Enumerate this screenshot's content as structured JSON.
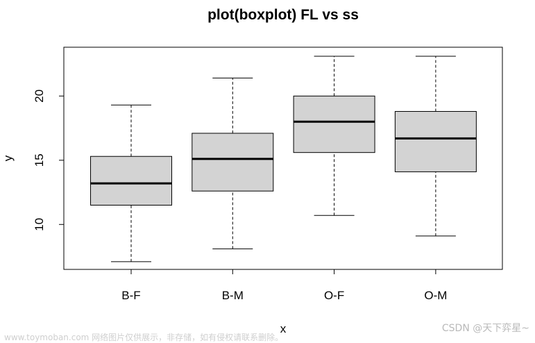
{
  "chart_data": {
    "type": "boxplot",
    "title": "plot(boxplot) FL vs ss",
    "xlabel": "x",
    "ylabel": "y",
    "categories": [
      "B-F",
      "B-M",
      "O-F",
      "O-M"
    ],
    "yticks": [
      10,
      15,
      20
    ],
    "ylim": [
      6.5,
      23.8
    ],
    "box_fill": "#d3d3d3",
    "boxes": [
      {
        "label": "B-F",
        "whisker_low": 7.1,
        "q1": 11.5,
        "median": 13.2,
        "q3": 15.3,
        "whisker_high": 19.3
      },
      {
        "label": "B-M",
        "whisker_low": 8.1,
        "q1": 12.6,
        "median": 15.1,
        "q3": 17.1,
        "whisker_high": 21.4
      },
      {
        "label": "O-F",
        "whisker_low": 10.7,
        "q1": 15.6,
        "median": 18.0,
        "q3": 20.0,
        "whisker_high": 23.1
      },
      {
        "label": "O-M",
        "whisker_low": 9.1,
        "q1": 14.1,
        "median": 16.7,
        "q3": 18.8,
        "whisker_high": 23.1
      }
    ]
  },
  "watermarks": {
    "left": "www.toymoban.com 网络图片仅供展示，非存储，如有侵权请联系删除。",
    "right": "CSDN @天下弈星~"
  }
}
